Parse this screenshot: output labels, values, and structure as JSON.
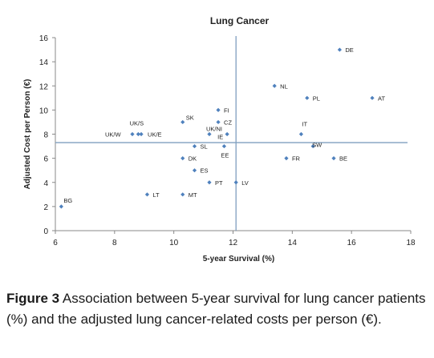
{
  "chart_data": {
    "type": "scatter",
    "title": "Lung Cancer",
    "xlabel": "5-year Survival (%)",
    "ylabel": "Adjusted Cost per Person (€)",
    "xlim": [
      6,
      18
    ],
    "ylim": [
      0,
      16
    ],
    "xticks": [
      "6",
      "8",
      "10",
      "12",
      "14",
      "16",
      "18"
    ],
    "yticks": [
      "0",
      "2",
      "4",
      "6",
      "8",
      "10",
      "12",
      "14",
      "16"
    ],
    "grid": false,
    "legend": "none",
    "marker_color": "#4f81bd",
    "reference_line_color": "#7f9fbf",
    "reference_lines": {
      "x": 12.1,
      "y": 7.3
    },
    "points": [
      {
        "label": "DE",
        "x": 15.6,
        "y": 15.0
      },
      {
        "label": "NL",
        "x": 13.4,
        "y": 12.0
      },
      {
        "label": "PL",
        "x": 14.5,
        "y": 11.0
      },
      {
        "label": "AT",
        "x": 16.7,
        "y": 11.0
      },
      {
        "label": "FI",
        "x": 11.5,
        "y": 10.0
      },
      {
        "label": "SK",
        "x": 10.3,
        "y": 9.0
      },
      {
        "label": "CZ",
        "x": 11.5,
        "y": 9.0
      },
      {
        "label": "UK/S",
        "x": 8.8,
        "y": 8.0
      },
      {
        "label": "UK/W",
        "x": 8.6,
        "y": 8.0
      },
      {
        "label": "UK/E",
        "x": 8.9,
        "y": 8.0
      },
      {
        "label": "UK/NI",
        "x": 11.2,
        "y": 8.0
      },
      {
        "label": "IE",
        "x": 11.8,
        "y": 8.0
      },
      {
        "label": "IT",
        "x": 14.3,
        "y": 8.0
      },
      {
        "label": "SW",
        "x": 14.7,
        "y": 7.0
      },
      {
        "label": "SL",
        "x": 10.7,
        "y": 7.0
      },
      {
        "label": "EE",
        "x": 11.7,
        "y": 7.0
      },
      {
        "label": "DK",
        "x": 10.3,
        "y": 6.0
      },
      {
        "label": "FR",
        "x": 13.8,
        "y": 6.0
      },
      {
        "label": "BE",
        "x": 15.4,
        "y": 6.0
      },
      {
        "label": "ES",
        "x": 10.7,
        "y": 5.0
      },
      {
        "label": "PT",
        "x": 11.2,
        "y": 4.0
      },
      {
        "label": "LV",
        "x": 12.1,
        "y": 4.0
      },
      {
        "label": "LT",
        "x": 9.1,
        "y": 3.0
      },
      {
        "label": "MT",
        "x": 10.3,
        "y": 3.0
      },
      {
        "label": "BG",
        "x": 6.2,
        "y": 2.0
      }
    ]
  },
  "caption": {
    "label": "Figure 3",
    "text": " Association between 5-year survival for lung cancer patients (%) and the adjusted lung cancer-related costs per person (€)."
  }
}
